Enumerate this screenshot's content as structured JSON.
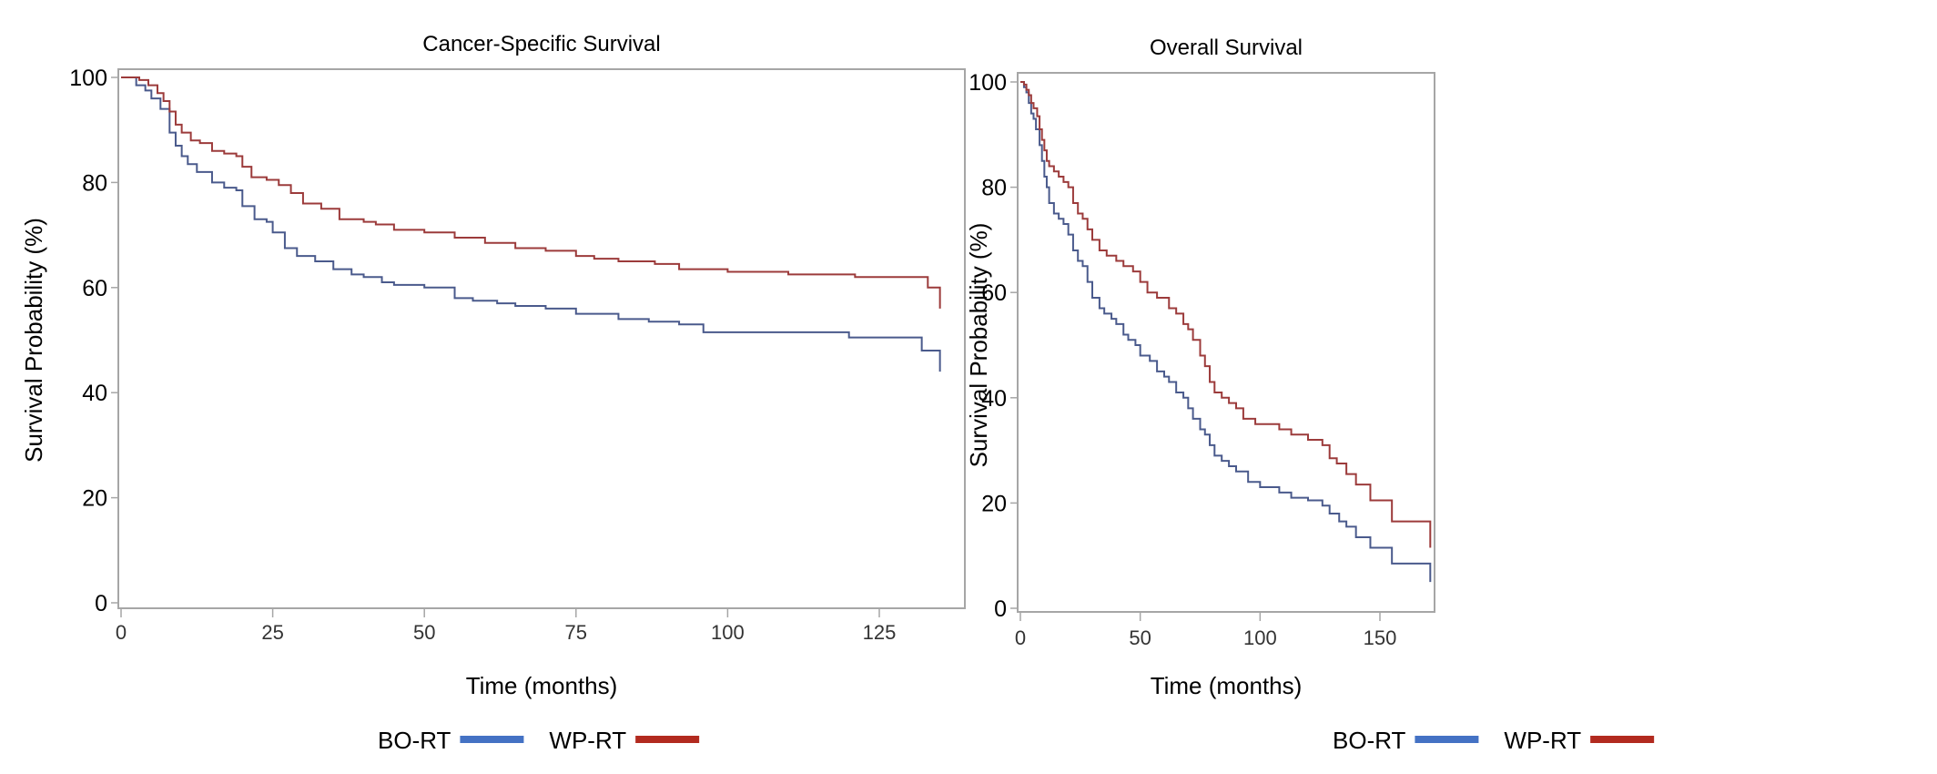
{
  "chart_data": [
    {
      "type": "line",
      "subtype": "kaplan-meier step",
      "title": "Cancer-Specific Survival",
      "xlabel": "Time (months)",
      "ylabel": "Survival Probability (%)",
      "xlim": [
        0,
        135
      ],
      "ylim": [
        0,
        100
      ],
      "xticks": [
        0,
        25,
        50,
        75,
        100,
        125
      ],
      "yticks": [
        0,
        20,
        40,
        60,
        80,
        100
      ],
      "grid": false,
      "legend": "bottom-center",
      "series": [
        {
          "name": "BO-RT",
          "color": "#4a5a8c",
          "legend_color": "#4472c4",
          "x": [
            0,
            2.5,
            4,
            5,
            6.5,
            8,
            9,
            10,
            11,
            12.5,
            15,
            17,
            19,
            20,
            22,
            24,
            25,
            27,
            29,
            32,
            35,
            38,
            40,
            43,
            45,
            50,
            55,
            58,
            62,
            65,
            70,
            75,
            82,
            87,
            92,
            96,
            120,
            132,
            135
          ],
          "y": [
            100,
            98.5,
            97.5,
            96,
            94,
            89.5,
            87,
            85,
            83.5,
            82,
            80,
            79,
            78.5,
            75.5,
            73,
            72.5,
            70.5,
            67.5,
            66,
            65,
            63.5,
            62.5,
            62,
            61,
            60.5,
            60,
            58,
            57.5,
            57,
            56.5,
            56,
            55,
            54,
            53.5,
            53,
            51.5,
            50.5,
            48,
            44
          ]
        },
        {
          "name": "WP-RT",
          "color": "#9c3b3b",
          "legend_color": "#b22a1f",
          "x": [
            0,
            3,
            4.5,
            6,
            7,
            8,
            9,
            10,
            11.5,
            13,
            15,
            17,
            19,
            20,
            21.5,
            24,
            26,
            28,
            30,
            33,
            36,
            40,
            42,
            45,
            50,
            55,
            60,
            65,
            70,
            75,
            78,
            82,
            88,
            92,
            100,
            110,
            121,
            133,
            135
          ],
          "y": [
            100,
            99.5,
            98.5,
            97,
            95.5,
            93.5,
            91,
            89.5,
            88,
            87.5,
            86,
            85.5,
            85,
            83,
            81,
            80.5,
            79.5,
            78,
            76,
            75,
            73,
            72.5,
            72,
            71,
            70.5,
            69.5,
            68.5,
            67.5,
            67,
            66,
            65.5,
            65,
            64.5,
            63.5,
            63,
            62.5,
            62,
            60,
            56
          ]
        }
      ]
    },
    {
      "type": "line",
      "subtype": "kaplan-meier step",
      "title": "Overall Survival",
      "xlabel": "Time (months)",
      "ylabel": "Survival Probability (%)",
      "xlim": [
        0,
        171
      ],
      "ylim": [
        0,
        100
      ],
      "xticks": [
        0,
        50,
        100,
        150
      ],
      "yticks": [
        0,
        20,
        40,
        60,
        80,
        100
      ],
      "grid": false,
      "legend": "bottom-center",
      "series": [
        {
          "name": "BO-RT",
          "color": "#4a5a8c",
          "legend_color": "#4472c4",
          "x": [
            0,
            1.5,
            2.5,
            3.5,
            4.5,
            5.5,
            6.5,
            8,
            9,
            10,
            11,
            12,
            14,
            16,
            18,
            20,
            22,
            24,
            26,
            28,
            30,
            33,
            35,
            38,
            40,
            43,
            45,
            48,
            50,
            54,
            57,
            60,
            62,
            65,
            68,
            70,
            72,
            75,
            77,
            79,
            81,
            84,
            87,
            90,
            95,
            100,
            108,
            113,
            120,
            126,
            129,
            133,
            136,
            140,
            146,
            155,
            171
          ],
          "y": [
            100,
            99,
            98,
            96,
            94,
            93,
            91,
            88,
            85,
            82,
            80,
            77,
            75,
            74,
            73,
            71,
            68,
            66,
            65,
            62,
            59,
            57,
            56,
            55,
            54,
            52,
            51,
            50,
            48,
            47,
            45,
            44,
            43,
            41,
            40,
            38,
            36,
            34,
            33,
            31,
            29,
            28,
            27,
            26,
            24,
            23,
            22,
            21,
            20.5,
            19.5,
            18,
            16.5,
            15.5,
            13.5,
            11.5,
            8.5,
            5
          ]
        },
        {
          "name": "WP-RT",
          "color": "#9c3b3b",
          "legend_color": "#b22a1f",
          "x": [
            0,
            1.5,
            2.5,
            3.5,
            4.5,
            5.5,
            7,
            8,
            9,
            10,
            11,
            12,
            14,
            16,
            18,
            20,
            22,
            24,
            26,
            28,
            30,
            33,
            36,
            40,
            43,
            47,
            50,
            53,
            57,
            62,
            65,
            68,
            70,
            72,
            75,
            77,
            79,
            81,
            84,
            87,
            90,
            93,
            98,
            108,
            113,
            120,
            126,
            129,
            132,
            136,
            140,
            146,
            155,
            171
          ],
          "y": [
            100,
            99.5,
            98.5,
            97.5,
            96,
            95,
            93.5,
            91,
            89,
            87,
            85,
            84,
            83,
            82,
            81,
            80,
            77,
            75,
            74,
            72,
            70,
            68,
            67,
            66,
            65,
            64,
            62,
            60,
            59,
            57,
            56,
            54,
            53,
            51,
            48,
            46,
            43,
            41,
            40,
            39,
            38,
            36,
            35,
            34,
            33,
            32,
            31,
            28.5,
            27.5,
            25.5,
            23.5,
            20.5,
            16.5,
            11.5
          ]
        }
      ]
    }
  ]
}
